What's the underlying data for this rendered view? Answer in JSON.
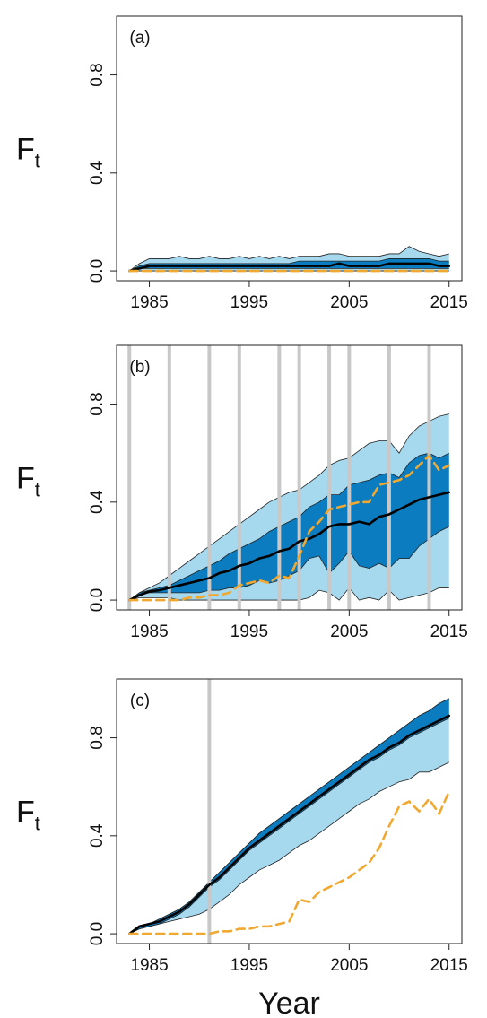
{
  "chart_data": [
    {
      "type": "band",
      "panel_label": "(a)",
      "y_label": {
        "main": "F",
        "sub": "t"
      },
      "x": [
        1983,
        1984,
        1985,
        1986,
        1987,
        1988,
        1989,
        1990,
        1991,
        1992,
        1993,
        1994,
        1995,
        1996,
        1997,
        1998,
        1999,
        2000,
        2001,
        2002,
        2003,
        2004,
        2005,
        2006,
        2007,
        2008,
        2009,
        2010,
        2011,
        2012,
        2013,
        2014,
        2015
      ],
      "xlim": [
        1981.72,
        2016.28
      ],
      "xticks": [
        1985,
        1995,
        2005,
        2015
      ],
      "ylim": [
        -0.04,
        1.04
      ],
      "yticks": [
        {
          "value": 0,
          "label": "0.0"
        },
        {
          "value": 0.4,
          "label": "0.4"
        },
        {
          "value": 0.8,
          "label": "0.8"
        }
      ],
      "vlines": [],
      "vline_color": "#c8c8c8",
      "bands": [
        {
          "color": "#a6d8ee",
          "lower": [
            0,
            0,
            0,
            0,
            0,
            0,
            0,
            0,
            0,
            0,
            0,
            0,
            0,
            0,
            0,
            0,
            0,
            0,
            0,
            0,
            0,
            0,
            0,
            0,
            0,
            0,
            0,
            0,
            0,
            0,
            0,
            0,
            0
          ],
          "upper": [
            0,
            0.03,
            0.05,
            0.05,
            0.05,
            0.06,
            0.05,
            0.05,
            0.06,
            0.05,
            0.05,
            0.06,
            0.05,
            0.06,
            0.05,
            0.06,
            0.05,
            0.06,
            0.06,
            0.06,
            0.07,
            0.07,
            0.06,
            0.06,
            0.06,
            0.06,
            0.07,
            0.07,
            0.1,
            0.08,
            0.07,
            0.06,
            0.07
          ]
        },
        {
          "color": "#0a7cbf",
          "lower": [
            0,
            0.01,
            0.01,
            0.01,
            0.01,
            0.01,
            0.01,
            0.01,
            0.01,
            0.01,
            0.01,
            0.01,
            0.01,
            0.01,
            0.01,
            0.01,
            0.01,
            0.01,
            0.01,
            0.01,
            0.01,
            0.01,
            0.01,
            0.01,
            0.01,
            0.01,
            0.01,
            0.01,
            0.01,
            0.01,
            0.01,
            0.01,
            0.01
          ],
          "upper": [
            0,
            0.02,
            0.03,
            0.03,
            0.03,
            0.03,
            0.03,
            0.03,
            0.03,
            0.03,
            0.03,
            0.03,
            0.03,
            0.03,
            0.03,
            0.03,
            0.03,
            0.04,
            0.04,
            0.04,
            0.04,
            0.04,
            0.04,
            0.04,
            0.04,
            0.04,
            0.05,
            0.05,
            0.05,
            0.05,
            0.05,
            0.04,
            0.04
          ]
        }
      ],
      "lines": [
        {
          "color": "#000000",
          "dashed": false,
          "values": [
            0,
            0.01,
            0.02,
            0.02,
            0.02,
            0.02,
            0.02,
            0.02,
            0.02,
            0.02,
            0.02,
            0.02,
            0.02,
            0.02,
            0.02,
            0.02,
            0.02,
            0.02,
            0.02,
            0.02,
            0.02,
            0.03,
            0.02,
            0.02,
            0.02,
            0.02,
            0.03,
            0.03,
            0.03,
            0.03,
            0.03,
            0.02,
            0.02
          ]
        },
        {
          "color": "#f0a830",
          "dashed": true,
          "values": [
            0,
            0,
            0,
            0,
            0,
            0,
            0,
            0,
            0,
            0,
            0,
            0,
            0,
            0,
            0,
            0,
            0,
            0,
            0,
            0,
            0,
            0,
            0,
            0,
            0,
            0,
            0,
            0,
            0,
            0,
            0,
            0,
            0
          ]
        }
      ]
    },
    {
      "type": "band",
      "panel_label": "(b)",
      "y_label": {
        "main": "F",
        "sub": "t"
      },
      "x": [
        1983,
        1984,
        1985,
        1986,
        1987,
        1988,
        1989,
        1990,
        1991,
        1992,
        1993,
        1994,
        1995,
        1996,
        1997,
        1998,
        1999,
        2000,
        2001,
        2002,
        2003,
        2004,
        2005,
        2006,
        2007,
        2008,
        2009,
        2010,
        2011,
        2012,
        2013,
        2014,
        2015
      ],
      "xlim": [
        1981.72,
        2016.28
      ],
      "xticks": [
        1985,
        1995,
        2005,
        2015
      ],
      "ylim": [
        -0.04,
        1.04
      ],
      "yticks": [
        {
          "value": 0,
          "label": "0.0"
        },
        {
          "value": 0.4,
          "label": "0.4"
        },
        {
          "value": 0.8,
          "label": "0.8"
        }
      ],
      "vlines": [
        1983,
        1987,
        1991,
        1994,
        1998,
        2000,
        2003,
        2005,
        2009,
        2013
      ],
      "vline_color": "#c8c8c8",
      "bands": [
        {
          "color": "#a6d8ee",
          "lower": [
            0,
            0.01,
            0.01,
            0.01,
            0.01,
            0,
            0,
            0,
            0,
            0,
            0,
            0,
            0,
            0,
            0,
            0,
            0,
            0,
            0.01,
            0.04,
            0.03,
            0,
            0.05,
            0,
            0.01,
            0,
            0.04,
            0,
            0.01,
            0.02,
            0.03,
            0.05,
            0.05
          ],
          "upper": [
            0,
            0.03,
            0.05,
            0.07,
            0.1,
            0.13,
            0.16,
            0.19,
            0.22,
            0.25,
            0.28,
            0.31,
            0.34,
            0.37,
            0.4,
            0.42,
            0.44,
            0.45,
            0.48,
            0.51,
            0.55,
            0.57,
            0.58,
            0.61,
            0.64,
            0.65,
            0.65,
            0.6,
            0.67,
            0.71,
            0.73,
            0.75,
            0.76
          ]
        },
        {
          "color": "#0a7cbf",
          "lower": [
            0,
            0.02,
            0.03,
            0.03,
            0.03,
            0.03,
            0.03,
            0.03,
            0.04,
            0.04,
            0.05,
            0.05,
            0.06,
            0.08,
            0.07,
            0.08,
            0.1,
            0.12,
            0.17,
            0.18,
            0.11,
            0.15,
            0.2,
            0.14,
            0.13,
            0.15,
            0.13,
            0.17,
            0.17,
            0.22,
            0.25,
            0.28,
            0.3
          ],
          "upper": [
            0,
            0.03,
            0.04,
            0.05,
            0.06,
            0.08,
            0.1,
            0.12,
            0.14,
            0.16,
            0.19,
            0.21,
            0.23,
            0.25,
            0.28,
            0.3,
            0.32,
            0.34,
            0.38,
            0.4,
            0.43,
            0.43,
            0.47,
            0.48,
            0.49,
            0.51,
            0.52,
            0.5,
            0.56,
            0.59,
            0.6,
            0.58,
            0.6
          ]
        }
      ],
      "lines": [
        {
          "color": "#000000",
          "dashed": false,
          "values": [
            0,
            0.02,
            0.035,
            0.04,
            0.05,
            0.06,
            0.07,
            0.08,
            0.09,
            0.11,
            0.12,
            0.14,
            0.15,
            0.17,
            0.18,
            0.2,
            0.21,
            0.24,
            0.25,
            0.27,
            0.3,
            0.31,
            0.31,
            0.32,
            0.31,
            0.34,
            0.35,
            0.37,
            0.39,
            0.41,
            0.42,
            0.43,
            0.44
          ]
        },
        {
          "color": "#f0a830",
          "dashed": true,
          "values": [
            0,
            0,
            0,
            0,
            0,
            0,
            0.01,
            0.01,
            0.02,
            0.02,
            0.03,
            0.06,
            0.07,
            0.08,
            0.07,
            0.1,
            0.09,
            0.18,
            0.28,
            0.32,
            0.37,
            0.38,
            0.39,
            0.4,
            0.4,
            0.47,
            0.48,
            0.49,
            0.51,
            0.55,
            0.59,
            0.53,
            0.55
          ]
        }
      ]
    },
    {
      "type": "band",
      "panel_label": "(c)",
      "y_label": {
        "main": "F",
        "sub": "t"
      },
      "x_label": "Year",
      "x": [
        1983,
        1984,
        1985,
        1986,
        1987,
        1988,
        1989,
        1990,
        1991,
        1992,
        1993,
        1994,
        1995,
        1996,
        1997,
        1998,
        1999,
        2000,
        2001,
        2002,
        2003,
        2004,
        2005,
        2006,
        2007,
        2008,
        2009,
        2010,
        2011,
        2012,
        2013,
        2014,
        2015
      ],
      "xlim": [
        1981.72,
        2016.28
      ],
      "xticks": [
        1985,
        1995,
        2005,
        2015
      ],
      "ylim": [
        -0.04,
        1.04
      ],
      "yticks": [
        {
          "value": 0,
          "label": "0.0"
        },
        {
          "value": 0.4,
          "label": "0.4"
        },
        {
          "value": 0.8,
          "label": "0.8"
        }
      ],
      "vlines": [
        1991
      ],
      "vline_color": "#c8c8c8",
      "bands": [
        {
          "color": "#a6d8ee",
          "lower": [
            0,
            0.02,
            0.03,
            0.04,
            0.05,
            0.06,
            0.07,
            0.08,
            0.1,
            0.13,
            0.16,
            0.2,
            0.23,
            0.26,
            0.28,
            0.3,
            0.33,
            0.36,
            0.38,
            0.41,
            0.44,
            0.47,
            0.5,
            0.53,
            0.55,
            0.58,
            0.6,
            0.62,
            0.63,
            0.66,
            0.66,
            0.68,
            0.7
          ],
          "upper": [
            0,
            0.03,
            0.04,
            0.06,
            0.08,
            0.1,
            0.13,
            0.17,
            0.21,
            0.25,
            0.29,
            0.33,
            0.37,
            0.41,
            0.44,
            0.47,
            0.5,
            0.53,
            0.56,
            0.59,
            0.62,
            0.65,
            0.68,
            0.71,
            0.74,
            0.77,
            0.8,
            0.83,
            0.86,
            0.89,
            0.91,
            0.94,
            0.96
          ]
        },
        {
          "color": "#0a7cbf",
          "lower": [
            0,
            0.02,
            0.03,
            0.04,
            0.06,
            0.08,
            0.11,
            0.15,
            0.19,
            0.22,
            0.26,
            0.3,
            0.34,
            0.37,
            0.4,
            0.43,
            0.46,
            0.49,
            0.52,
            0.55,
            0.58,
            0.61,
            0.64,
            0.67,
            0.7,
            0.72,
            0.75,
            0.77,
            0.8,
            0.82,
            0.84,
            0.86,
            0.88
          ],
          "upper": [
            0,
            0.03,
            0.04,
            0.06,
            0.08,
            0.1,
            0.13,
            0.17,
            0.21,
            0.25,
            0.29,
            0.33,
            0.37,
            0.41,
            0.44,
            0.47,
            0.5,
            0.53,
            0.56,
            0.59,
            0.62,
            0.65,
            0.68,
            0.71,
            0.74,
            0.77,
            0.8,
            0.83,
            0.86,
            0.89,
            0.91,
            0.94,
            0.96
          ]
        }
      ],
      "lines": [
        {
          "color": "#000000",
          "dashed": false,
          "values": [
            0,
            0.03,
            0.04,
            0.05,
            0.07,
            0.09,
            0.12,
            0.16,
            0.2,
            0.23,
            0.27,
            0.31,
            0.35,
            0.38,
            0.41,
            0.44,
            0.47,
            0.5,
            0.53,
            0.56,
            0.59,
            0.62,
            0.65,
            0.68,
            0.71,
            0.73,
            0.76,
            0.78,
            0.81,
            0.83,
            0.85,
            0.87,
            0.89
          ]
        },
        {
          "color": "#f0a830",
          "dashed": true,
          "values": [
            0,
            0,
            0,
            0,
            0,
            0,
            0,
            0,
            0,
            0.01,
            0.01,
            0.02,
            0.02,
            0.03,
            0.03,
            0.04,
            0.05,
            0.14,
            0.13,
            0.17,
            0.19,
            0.21,
            0.23,
            0.26,
            0.29,
            0.35,
            0.44,
            0.52,
            0.54,
            0.5,
            0.55,
            0.49,
            0.58
          ]
        }
      ]
    }
  ]
}
